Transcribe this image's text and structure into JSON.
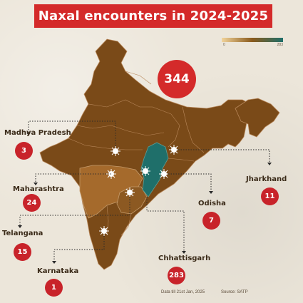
{
  "title": "Naxal encounters in  2024-2025",
  "legend": {
    "min_label": "0",
    "max_label": "283",
    "color_low": "#f1d39a",
    "color_mid": "#8a5a1c",
    "color_high": "#1f6f6a"
  },
  "total": "344",
  "states": [
    {
      "name": "Madhya Pradesh",
      "count": "3"
    },
    {
      "name": "Maharashtra",
      "count": "24"
    },
    {
      "name": "Telangana",
      "count": "15"
    },
    {
      "name": "Karnataka",
      "count": "1"
    },
    {
      "name": "Chhattisgarh",
      "count": "283"
    },
    {
      "name": "Odisha",
      "count": "7"
    },
    {
      "name": "Jharkhand",
      "count": "11"
    }
  ],
  "footer": {
    "date_note": "Data till 21st Jan, 2025",
    "source": "Source: SATP"
  },
  "colors": {
    "title_bg": "#d42a2a",
    "country_fill": "#7a4a18",
    "chhattisgarh_fill": "#1f6f6a",
    "maharashtra_fill": "#a56a2c",
    "telangana_fill": "#8c5922"
  }
}
